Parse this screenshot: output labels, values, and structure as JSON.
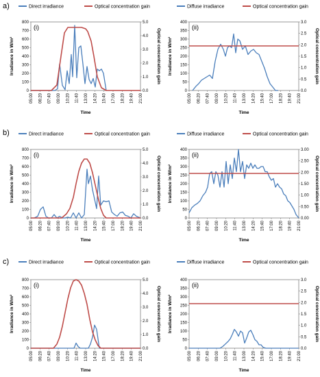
{
  "rows": [
    {
      "label": "a)"
    },
    {
      "label": "b)"
    },
    {
      "label": "c)"
    }
  ],
  "colors": {
    "blue": "#4a7ebb",
    "red": "#be4b48"
  },
  "times": [
    "05:00",
    "06:20",
    "07:40",
    "09:00",
    "10:20",
    "11:40",
    "13:00",
    "14:20",
    "15:40",
    "17:00",
    "18:20",
    "19:40",
    "21:00"
  ],
  "chart_data": [
    {
      "type": "line",
      "panel": "(i)",
      "row": 0,
      "col": 0,
      "legend": [
        "Direct irradiance",
        "Optical concentration gain"
      ],
      "xlabel": "Time",
      "ylabel": "Irradiance in W/m²",
      "y2label": "Optical concentration  gain",
      "ylim": [
        0,
        800
      ],
      "yticks": [
        0,
        100,
        200,
        300,
        400,
        500,
        600,
        700,
        800
      ],
      "y2lim": [
        0,
        5
      ],
      "y2ticks": [
        "0.0",
        "1.0",
        "2.0",
        "3.0",
        "4.0",
        "5.0"
      ],
      "series": [
        {
          "name": "Direct irradiance",
          "axis": "left",
          "color": "blue",
          "x": [
            5,
            7.5,
            8.5,
            8.9,
            9.2,
            9.6,
            10,
            10.3,
            10.6,
            10.9,
            11.1,
            11.4,
            11.7,
            12,
            12.3,
            12.6,
            12.9,
            13.2,
            13.5,
            13.8,
            14.1,
            14.4,
            14.7,
            15,
            15.3,
            15.6,
            16
          ],
          "y": [
            0,
            0,
            0,
            20,
            310,
            60,
            10,
            230,
            80,
            420,
            160,
            760,
            150,
            500,
            520,
            310,
            80,
            280,
            130,
            80,
            140,
            40,
            250,
            230,
            250,
            200,
            0
          ]
        },
        {
          "name": "Optical concentration gain",
          "axis": "right",
          "color": "red",
          "x": [
            5,
            8,
            8.8,
            9.4,
            9.9,
            10.4,
            12.4,
            13,
            13.3,
            13.8,
            14.2,
            14.7,
            15.3,
            16,
            21
          ],
          "y": [
            0,
            0,
            0.4,
            2.5,
            4.2,
            4.6,
            4.6,
            4.5,
            4.3,
            3.6,
            2.5,
            1.0,
            0.2,
            0,
            0
          ]
        }
      ]
    },
    {
      "type": "line",
      "panel": "(ii)",
      "row": 0,
      "col": 1,
      "legend": [
        "Diffuse irradiance",
        "Optical concentration gain"
      ],
      "xlabel": "Time",
      "ylabel": "Irradiance in W/m²",
      "y2label": "Optical concentration  gain",
      "ylim": [
        0,
        400
      ],
      "yticks": [
        0,
        50,
        100,
        150,
        200,
        250,
        300,
        350,
        400
      ],
      "y2lim": [
        0,
        3
      ],
      "y2ticks": [
        "0.0",
        "0.5",
        "1.0",
        "1.5",
        "2.0",
        "2.5",
        "3.0"
      ],
      "series": [
        {
          "name": "Diffuse irradiance",
          "axis": "left",
          "color": "blue",
          "x": [
            5.5,
            6,
            6.4,
            6.8,
            7.2,
            7.6,
            8,
            8.4,
            8.8,
            9.2,
            9.6,
            10,
            10.3,
            10.6,
            10.9,
            11.2,
            11.5,
            11.8,
            12.1,
            12.4,
            12.8,
            13.2,
            13.6,
            14,
            14.4,
            14.8,
            15.2,
            15.6,
            16,
            16.4,
            16.8,
            17.2,
            17.6,
            18
          ],
          "y": [
            0,
            25,
            40,
            60,
            70,
            80,
            90,
            70,
            170,
            240,
            270,
            240,
            200,
            250,
            260,
            250,
            330,
            220,
            300,
            290,
            240,
            260,
            210,
            230,
            240,
            220,
            210,
            170,
            130,
            80,
            40,
            20,
            0,
            0
          ]
        },
        {
          "name": "Optical concentration gain",
          "axis": "right",
          "color": "red",
          "x": [
            5,
            21
          ],
          "y": [
            1.95,
            1.95
          ]
        }
      ]
    },
    {
      "type": "line",
      "panel": "(i)",
      "row": 1,
      "col": 0,
      "legend": [
        "Direct irradiance",
        "Optical concentration gain"
      ],
      "xlabel": "Time",
      "ylabel": "Irradiance in W/m²",
      "y2label": "Optical concentration  gain",
      "ylim": [
        0,
        800
      ],
      "yticks": [
        0,
        100,
        200,
        300,
        400,
        500,
        600,
        700,
        800
      ],
      "y2lim": [
        0,
        5
      ],
      "y2ticks": [
        "0.0",
        "1.0",
        "2.0",
        "3.0",
        "4.0",
        "5.0"
      ],
      "series": [
        {
          "name": "Direct irradiance",
          "axis": "left",
          "color": "blue",
          "x": [
            5,
            5.5,
            6,
            6.4,
            6.8,
            7.2,
            7.6,
            8,
            8.4,
            8.8,
            9.2,
            9.6,
            10,
            10.4,
            10.8,
            11.2,
            11.6,
            12,
            12.4,
            12.8,
            13.2,
            13.4,
            13.7,
            14,
            14.3,
            14.6,
            14.9,
            15.2,
            15.6,
            16,
            16.4,
            16.8,
            17.2,
            17.6,
            18,
            18.4,
            18.8,
            19.2,
            19.6,
            20,
            20.4,
            21
          ],
          "y": [
            0,
            0,
            20,
            100,
            130,
            20,
            0,
            0,
            40,
            0,
            20,
            0,
            0,
            10,
            0,
            60,
            0,
            60,
            0,
            40,
            570,
            400,
            490,
            330,
            220,
            110,
            490,
            150,
            200,
            190,
            200,
            70,
            40,
            20,
            60,
            70,
            30,
            20,
            0,
            50,
            20,
            0
          ]
        },
        {
          "name": "Optical concentration gain",
          "axis": "right",
          "color": "red",
          "x": [
            5,
            9.5,
            10.2,
            10.7,
            11.2,
            11.6,
            12,
            12.4,
            12.8,
            13.2,
            13.6,
            14,
            14.4,
            14.8,
            15.2,
            15.6,
            16,
            21
          ],
          "y": [
            0,
            0,
            0.3,
            0.7,
            1.5,
            2.5,
            3.4,
            4.0,
            4.3,
            4.3,
            4.0,
            3.3,
            2.4,
            1.5,
            0.7,
            0.2,
            0,
            0
          ]
        }
      ]
    },
    {
      "type": "line",
      "panel": "(ii)",
      "row": 1,
      "col": 1,
      "legend": [
        "Diffuse irradiance",
        "Optical concentration gain"
      ],
      "xlabel": "Time",
      "ylabel": "Irradiance in W/m²",
      "y2label": "Optical concentration  gain",
      "ylim": [
        0,
        400
      ],
      "yticks": [
        0,
        50,
        100,
        150,
        200,
        250,
        300,
        350,
        400
      ],
      "y2lim": [
        0,
        3
      ],
      "y2ticks": [
        "0.00",
        "0.50",
        "1.00",
        "1.50",
        "2.00",
        "2.50",
        "3.00"
      ],
      "series": [
        {
          "name": "Diffuse irradiance",
          "axis": "left",
          "color": "blue",
          "x": [
            5,
            5.4,
            5.8,
            6.2,
            6.6,
            7,
            7.4,
            7.7,
            8,
            8.3,
            8.6,
            8.9,
            9.2,
            9.5,
            9.8,
            10.1,
            10.4,
            10.7,
            11,
            11.3,
            11.6,
            11.9,
            12.2,
            12.5,
            12.8,
            13.1,
            13.4,
            13.7,
            14,
            14.3,
            14.6,
            14.9,
            15.2,
            15.5,
            15.8,
            16.1,
            16.4,
            16.7,
            17,
            17.3,
            17.6,
            17.9,
            18.2,
            18.5,
            18.8,
            19.1,
            19.4,
            19.7,
            20,
            20.3,
            20.6,
            21
          ],
          "y": [
            30,
            60,
            75,
            85,
            100,
            130,
            150,
            180,
            260,
            270,
            200,
            270,
            250,
            180,
            270,
            180,
            330,
            200,
            310,
            230,
            350,
            270,
            400,
            270,
            330,
            230,
            310,
            290,
            320,
            290,
            310,
            290,
            290,
            300,
            300,
            270,
            270,
            240,
            220,
            230,
            180,
            200,
            180,
            170,
            140,
            130,
            100,
            90,
            70,
            50,
            20,
            0
          ]
        },
        {
          "name": "Optical concentration gain",
          "axis": "right",
          "color": "red",
          "x": [
            5,
            21
          ],
          "y": [
            1.95,
            1.95
          ]
        }
      ]
    },
    {
      "type": "line",
      "panel": "(i)",
      "row": 2,
      "col": 0,
      "legend": [
        "Direct irradiance",
        "Optical concentration gain"
      ],
      "xlabel": "Time",
      "ylabel": "Irradiance in W/m²",
      "y2label": "Optical concentration  gain",
      "ylim": [
        0,
        800
      ],
      "yticks": [
        0,
        100,
        200,
        300,
        400,
        500,
        600,
        700,
        800
      ],
      "y2lim": [
        0,
        5
      ],
      "y2ticks": [
        "0.0",
        "1.0",
        "2.0",
        "3.0",
        "4.0",
        "5.0"
      ],
      "series": [
        {
          "name": "Direct irradiance",
          "axis": "left",
          "color": "blue",
          "x": [
            5,
            11.3,
            11.6,
            11.9,
            12.2,
            13.4,
            13.7,
            14,
            14.3,
            14.6,
            15,
            21
          ],
          "y": [
            0,
            0,
            60,
            20,
            0,
            0,
            50,
            130,
            270,
            220,
            0,
            0
          ]
        },
        {
          "name": "Optical concentration gain",
          "axis": "right",
          "color": "red",
          "x": [
            5,
            8.3,
            8.8,
            9.2,
            9.6,
            10,
            10.4,
            10.8,
            11.2,
            11.6,
            12,
            12.4,
            12.8,
            13.2,
            13.6,
            14,
            14.4,
            14.8,
            15.2,
            15.6,
            21
          ],
          "y": [
            0,
            0,
            0.3,
            0.8,
            1.6,
            2.6,
            3.6,
            4.4,
            4.9,
            5.0,
            4.9,
            4.6,
            4.0,
            3.2,
            2.1,
            1.2,
            0.6,
            0.2,
            0,
            0,
            0
          ]
        }
      ]
    },
    {
      "type": "line",
      "panel": "(ii)",
      "row": 2,
      "col": 1,
      "legend": [
        "Diffuse irradiance",
        "Optical concentration gain"
      ],
      "xlabel": "Time",
      "ylabel": "Irradiance in W/m²",
      "y2label": "Optical concentration  gain",
      "ylim": [
        0,
        400
      ],
      "yticks": [
        0,
        50,
        100,
        150,
        200,
        250,
        300,
        350,
        400
      ],
      "y2lim": [
        0,
        3
      ],
      "y2ticks": [
        "0.0",
        "0.5",
        "1.0",
        "1.5",
        "2.0",
        "2.5",
        "3.0"
      ],
      "series": [
        {
          "name": "Diffuse irradiance",
          "axis": "left",
          "color": "blue",
          "x": [
            5,
            9.5,
            9.9,
            10.3,
            10.7,
            11,
            11.3,
            11.6,
            11.9,
            12.2,
            12.5,
            12.8,
            13.1,
            13.4,
            13.7,
            14,
            14.3,
            14.6,
            14.9,
            15.2,
            15.5,
            15.8,
            16.2,
            21
          ],
          "y": [
            0,
            0,
            10,
            25,
            40,
            55,
            80,
            110,
            95,
            70,
            100,
            90,
            30,
            60,
            95,
            105,
            80,
            50,
            40,
            20,
            20,
            5,
            0,
            0
          ]
        },
        {
          "name": "Optical concentration gain",
          "axis": "right",
          "color": "red",
          "x": [
            5,
            21
          ],
          "y": [
            1.95,
            1.95
          ]
        }
      ]
    }
  ]
}
